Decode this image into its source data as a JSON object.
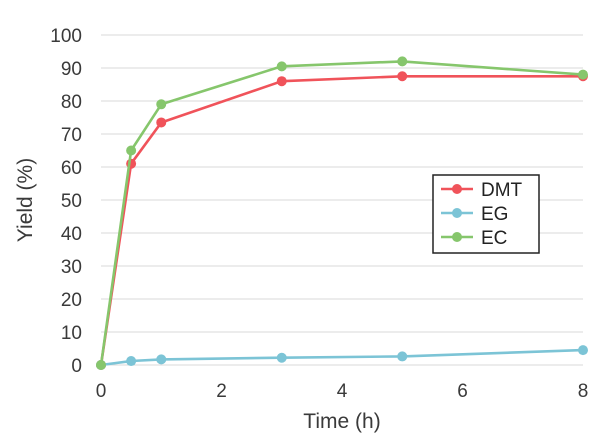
{
  "chart_data": {
    "type": "line",
    "title": "",
    "xlabel": "Time (h)",
    "ylabel": "Yield (%)",
    "xlim": [
      0,
      8
    ],
    "ylim": [
      0,
      100
    ],
    "xticks": [
      0,
      2,
      4,
      6,
      8
    ],
    "yticks": [
      0,
      10,
      20,
      30,
      40,
      50,
      60,
      70,
      80,
      90,
      100
    ],
    "grid": "horizontal",
    "legend_position": "right",
    "series": [
      {
        "name": "DMT",
        "color": "#f0535a",
        "x": [
          0,
          0.5,
          1,
          3,
          5,
          8
        ],
        "y": [
          0,
          61,
          73.5,
          86,
          87.5,
          87.5
        ]
      },
      {
        "name": "EG",
        "color": "#7cc4d6",
        "x": [
          0,
          0.5,
          1,
          3,
          5,
          8
        ],
        "y": [
          0,
          1.2,
          1.7,
          2.2,
          2.6,
          4.5
        ]
      },
      {
        "name": "EC",
        "color": "#86c66c",
        "x": [
          0,
          0.5,
          1,
          3,
          5,
          8
        ],
        "y": [
          0,
          65,
          79,
          90.5,
          92,
          88
        ]
      }
    ]
  }
}
